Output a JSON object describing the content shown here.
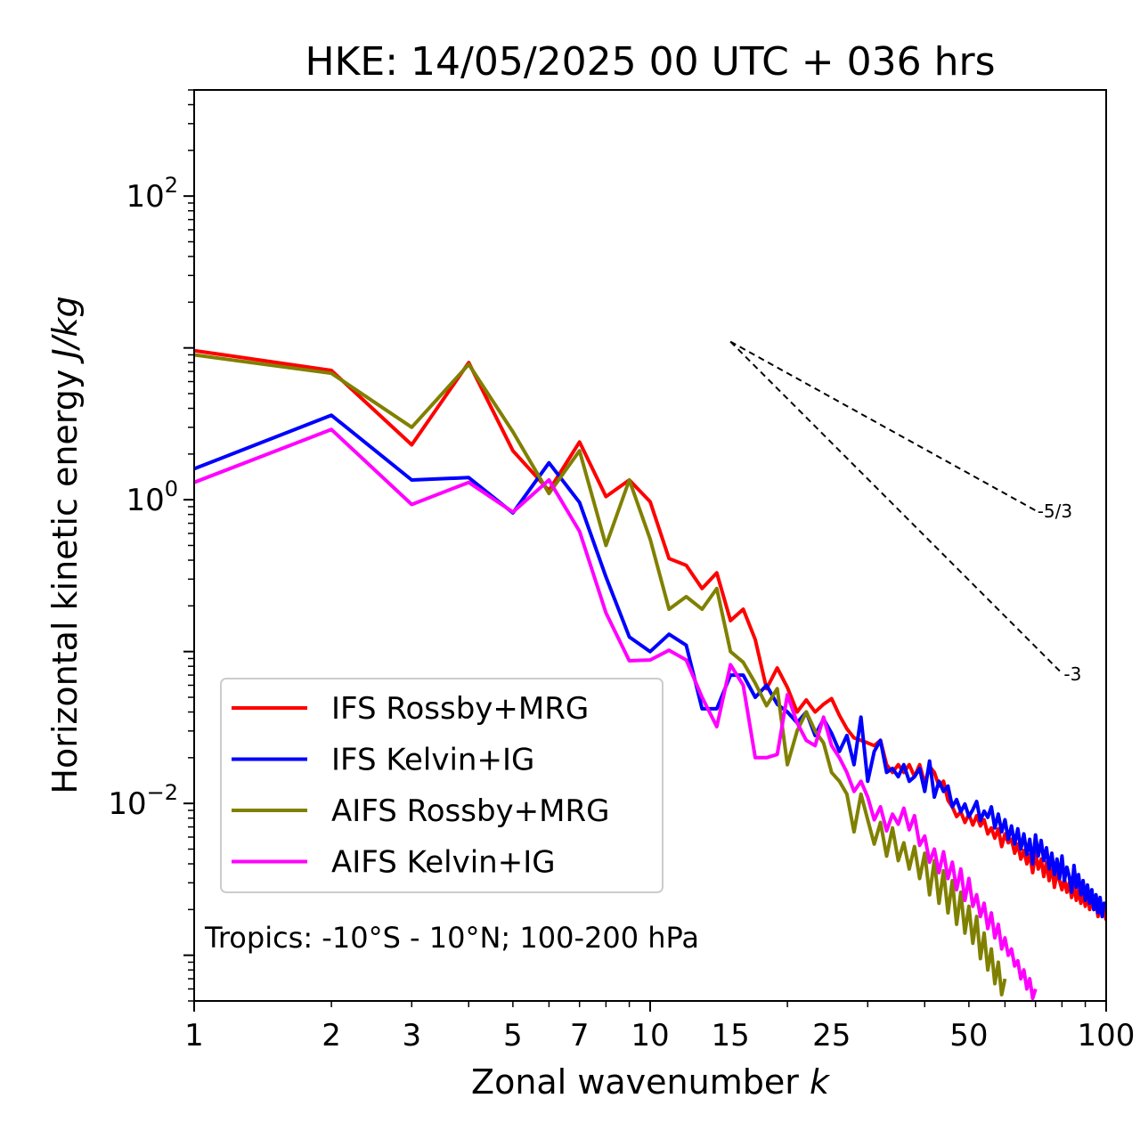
{
  "chart_data": {
    "type": "line",
    "title": "HKE: 14/05/2025 00 UTC + 036 hrs",
    "xlabel_text": "Zonal wavenumber ",
    "xlabel_var": "k",
    "ylabel_text": "Horizontal kinetic energy ",
    "ylabel_unit": "J/kg",
    "xscale": "log",
    "yscale": "log",
    "xlim": [
      1,
      100
    ],
    "ylim": [
      0.0005,
      500
    ],
    "grid": false,
    "legend_position": "lower-left",
    "xticks": [
      {
        "value": 1,
        "label": "1"
      },
      {
        "value": 2,
        "label": "2"
      },
      {
        "value": 3,
        "label": "3"
      },
      {
        "value": 5,
        "label": "5"
      },
      {
        "value": 7,
        "label": "7"
      },
      {
        "value": 10,
        "label": "10"
      },
      {
        "value": 15,
        "label": "15"
      },
      {
        "value": 25,
        "label": "25"
      },
      {
        "value": 50,
        "label": "50"
      },
      {
        "value": 100,
        "label": "100"
      }
    ],
    "yticks": [
      {
        "value": 100,
        "base": "10",
        "exp": "2"
      },
      {
        "value": 1,
        "base": "10",
        "exp": "0"
      },
      {
        "value": 0.01,
        "base": "10",
        "exp": "−2"
      }
    ],
    "annotation": "Tropics: -10°S - 10°N; 100-200 hPa",
    "reference_slopes": [
      {
        "label": "-5/3",
        "x0": 15,
        "y0": 11.0,
        "x1": 70,
        "y1": 0.85
      },
      {
        "label": "-3",
        "x0": 15,
        "y0": 11.0,
        "x1": 80,
        "y1": 0.072
      }
    ],
    "series": [
      {
        "name": "IFS Rossby+MRG",
        "color": "#ff0000",
        "x": [
          1,
          2,
          3,
          4,
          5,
          6,
          7,
          8,
          9,
          10,
          11,
          12,
          13,
          14,
          15,
          16,
          17,
          18,
          19,
          20,
          21,
          22,
          23,
          24,
          25,
          26,
          27,
          28,
          29,
          30,
          31,
          32,
          33,
          34,
          35,
          36,
          37,
          38,
          39,
          40,
          41,
          42,
          43,
          44,
          45,
          46,
          47,
          48,
          49,
          50,
          51,
          52,
          53,
          54,
          55,
          56,
          57,
          58,
          59,
          60,
          61,
          62,
          63,
          64,
          65,
          66,
          67,
          68,
          69,
          70,
          71,
          72,
          73,
          74,
          75,
          76,
          77,
          78,
          79,
          80,
          81,
          82,
          83,
          84,
          85,
          86,
          87,
          88,
          89,
          90,
          91,
          92,
          93,
          94,
          95,
          96,
          97,
          98,
          99,
          100
        ],
        "y": [
          9.6,
          7.1,
          2.3,
          8.0,
          2.1,
          1.15,
          2.4,
          1.05,
          1.35,
          0.97,
          0.41,
          0.37,
          0.26,
          0.33,
          0.16,
          0.19,
          0.12,
          0.057,
          0.078,
          0.058,
          0.04,
          0.048,
          0.04,
          0.045,
          0.049,
          0.038,
          0.031,
          0.027,
          0.026,
          0.025,
          0.024,
          0.026,
          0.018,
          0.016,
          0.018,
          0.016,
          0.018,
          0.015,
          0.018,
          0.0135,
          0.0175,
          0.016,
          0.013,
          0.014,
          0.0105,
          0.0095,
          0.0082,
          0.0088,
          0.0075,
          0.0085,
          0.0072,
          0.0083,
          0.0071,
          0.0078,
          0.0063,
          0.0069,
          0.0059,
          0.0068,
          0.0052,
          0.0063,
          0.0055,
          0.0058,
          0.0047,
          0.0054,
          0.0043,
          0.0049,
          0.004,
          0.0046,
          0.0035,
          0.0047,
          0.0037,
          0.0043,
          0.0033,
          0.0041,
          0.0031,
          0.0039,
          0.0028,
          0.0035,
          0.0031,
          0.0027,
          0.0032,
          0.0026,
          0.003,
          0.0024,
          0.0029,
          0.0023,
          0.0027,
          0.0022,
          0.0026,
          0.0021,
          0.0026,
          0.002,
          0.0024,
          0.002,
          0.0022,
          0.0018,
          0.0021,
          0.0019,
          0.002,
          0.0017
        ]
      },
      {
        "name": "IFS Kelvin+IG",
        "color": "#0000ff",
        "x": [
          1,
          2,
          3,
          4,
          5,
          6,
          7,
          8,
          9,
          10,
          11,
          12,
          13,
          14,
          15,
          16,
          17,
          18,
          19,
          20,
          21,
          22,
          23,
          24,
          25,
          26,
          27,
          28,
          29,
          30,
          31,
          32,
          33,
          34,
          35,
          36,
          37,
          38,
          39,
          40,
          41,
          42,
          43,
          44,
          45,
          46,
          47,
          48,
          49,
          50,
          51,
          52,
          53,
          54,
          55,
          56,
          57,
          58,
          59,
          60,
          61,
          62,
          63,
          64,
          65,
          66,
          67,
          68,
          69,
          70,
          71,
          72,
          73,
          74,
          75,
          76,
          77,
          78,
          79,
          80,
          81,
          82,
          83,
          84,
          85,
          86,
          87,
          88,
          89,
          90,
          91,
          92,
          93,
          94,
          95,
          96,
          97,
          98,
          99,
          100
        ],
        "y": [
          1.6,
          3.6,
          1.35,
          1.4,
          0.82,
          1.75,
          0.96,
          0.31,
          0.125,
          0.1,
          0.13,
          0.11,
          0.042,
          0.042,
          0.07,
          0.07,
          0.05,
          0.06,
          0.045,
          0.04,
          0.034,
          0.04,
          0.028,
          0.036,
          0.029,
          0.022,
          0.028,
          0.018,
          0.037,
          0.014,
          0.022,
          0.026,
          0.016,
          0.017,
          0.015,
          0.018,
          0.014,
          0.015,
          0.017,
          0.012,
          0.019,
          0.011,
          0.014,
          0.012,
          0.013,
          0.0095,
          0.0106,
          0.0088,
          0.0099,
          0.0082,
          0.0091,
          0.0103,
          0.0077,
          0.0089,
          0.0081,
          0.0095,
          0.0069,
          0.0085,
          0.0065,
          0.0078,
          0.0058,
          0.0071,
          0.0054,
          0.0068,
          0.005,
          0.0063,
          0.0046,
          0.0058,
          0.004,
          0.0062,
          0.0045,
          0.0057,
          0.0042,
          0.0051,
          0.0037,
          0.0047,
          0.0034,
          0.0043,
          0.0032,
          0.0045,
          0.0031,
          0.0038,
          0.0033,
          0.0026,
          0.0039,
          0.0028,
          0.0034,
          0.0025,
          0.0031,
          0.0023,
          0.0029,
          0.0022,
          0.0027,
          0.002,
          0.0025,
          0.0019,
          0.0024,
          0.0018,
          0.0022,
          0.0021
        ]
      },
      {
        "name": "AIFS Rossby+MRG",
        "color": "#808000",
        "x": [
          1,
          2,
          3,
          4,
          5,
          6,
          7,
          8,
          9,
          10,
          11,
          12,
          13,
          14,
          15,
          16,
          17,
          18,
          19,
          20,
          21,
          22,
          23,
          24,
          25,
          26,
          27,
          28,
          29,
          30,
          31,
          32,
          33,
          34,
          35,
          36,
          37,
          38,
          39,
          40,
          41,
          42,
          43,
          44,
          45,
          46,
          47,
          48,
          49,
          50,
          51,
          52,
          53,
          54,
          55,
          56,
          57,
          58,
          59,
          60
        ],
        "y": [
          9.0,
          6.8,
          3.0,
          7.8,
          2.8,
          1.1,
          2.1,
          0.5,
          1.35,
          0.55,
          0.19,
          0.23,
          0.19,
          0.26,
          0.1,
          0.085,
          0.062,
          0.044,
          0.057,
          0.018,
          0.03,
          0.04,
          0.03,
          0.025,
          0.016,
          0.014,
          0.0115,
          0.0065,
          0.0115,
          0.0078,
          0.0054,
          0.0075,
          0.0045,
          0.0069,
          0.0042,
          0.0055,
          0.0037,
          0.0052,
          0.0032,
          0.0047,
          0.0025,
          0.0042,
          0.0022,
          0.0036,
          0.0019,
          0.0031,
          0.0016,
          0.0026,
          0.0014,
          0.0021,
          0.0012,
          0.0018,
          0.00095,
          0.0014,
          0.0008,
          0.0011,
          0.00065,
          0.0009,
          0.00055,
          0.0007
        ]
      },
      {
        "name": "AIFS Kelvin+IG",
        "color": "#ff00ff",
        "x": [
          1,
          2,
          3,
          4,
          5,
          6,
          7,
          8,
          9,
          10,
          11,
          12,
          13,
          14,
          15,
          16,
          17,
          18,
          19,
          20,
          21,
          22,
          23,
          24,
          25,
          26,
          27,
          28,
          29,
          30,
          31,
          32,
          33,
          34,
          35,
          36,
          37,
          38,
          39,
          40,
          41,
          42,
          43,
          44,
          45,
          46,
          47,
          48,
          49,
          50,
          51,
          52,
          53,
          54,
          55,
          56,
          57,
          58,
          59,
          60,
          61,
          62,
          63,
          64,
          65,
          66,
          67,
          68,
          69,
          70
        ],
        "y": [
          1.3,
          2.9,
          0.93,
          1.3,
          0.83,
          1.35,
          0.62,
          0.18,
          0.087,
          0.088,
          0.102,
          0.088,
          0.05,
          0.032,
          0.082,
          0.06,
          0.02,
          0.02,
          0.021,
          0.052,
          0.034,
          0.026,
          0.024,
          0.037,
          0.024,
          0.02,
          0.016,
          0.012,
          0.014,
          0.011,
          0.0078,
          0.0095,
          0.0066,
          0.0085,
          0.0073,
          0.0093,
          0.0067,
          0.0083,
          0.0053,
          0.0061,
          0.0041,
          0.005,
          0.0035,
          0.0048,
          0.0032,
          0.0041,
          0.0027,
          0.0037,
          0.0023,
          0.0032,
          0.0021,
          0.0025,
          0.0018,
          0.0022,
          0.0015,
          0.0019,
          0.0013,
          0.0016,
          0.0011,
          0.0013,
          0.001,
          0.0011,
          0.00085,
          0.00092,
          0.0007,
          0.0008,
          0.0006,
          0.0007,
          0.00052,
          0.0006
        ]
      }
    ]
  }
}
